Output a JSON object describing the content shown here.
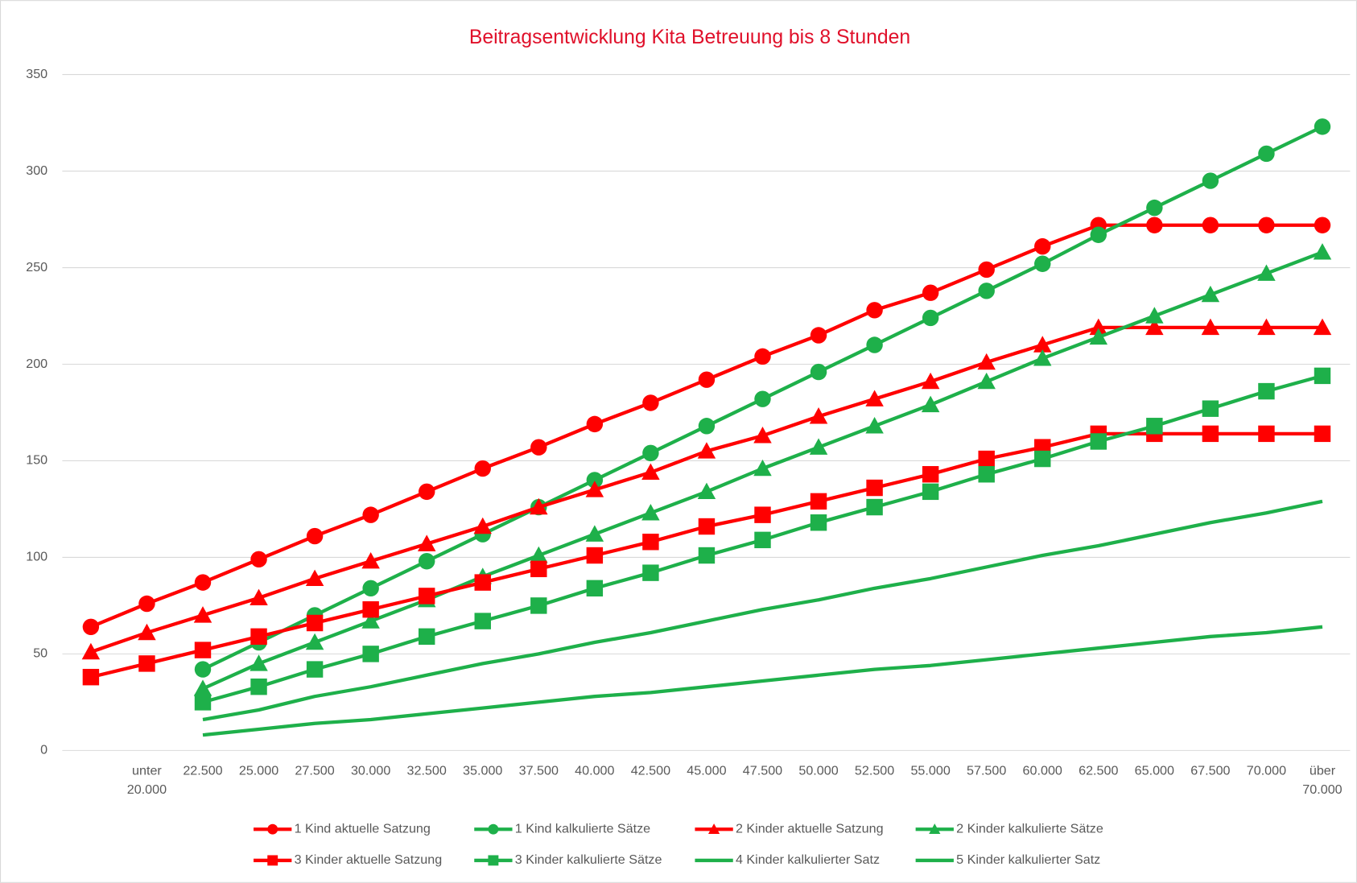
{
  "chart_data": {
    "type": "line",
    "title": "Beitragsentwicklung Kita Betreuung bis 8 Stunden",
    "categories": [
      null,
      "unter 20.000",
      "22.500",
      "25.000",
      "27.500",
      "30.000",
      "32.500",
      "35.000",
      "37.500",
      "40.000",
      "42.500",
      "45.000",
      "47.500",
      "50.000",
      "52.500",
      "55.000",
      "57.500",
      "60.000",
      "62.500",
      "65.000",
      "67.500",
      "70.000",
      "über 70.000"
    ],
    "ylim": [
      0,
      350
    ],
    "yticks": [
      0,
      50,
      100,
      150,
      200,
      250,
      300,
      350
    ],
    "grid": true,
    "legend": "bottom",
    "series": [
      {
        "name": "1 Kind aktuelle Satzung",
        "color": "#ff0000",
        "marker": "circle",
        "values": [
          64,
          76,
          87,
          99,
          111,
          122,
          134,
          146,
          157,
          169,
          180,
          192,
          204,
          215,
          228,
          237,
          249,
          261,
          272,
          272,
          272,
          272,
          272
        ]
      },
      {
        "name": "1 Kind kalkulierte Sätze",
        "color": "#1eb04a",
        "marker": "circle",
        "values": [
          null,
          null,
          42,
          56,
          70,
          84,
          98,
          112,
          126,
          140,
          154,
          168,
          182,
          196,
          210,
          224,
          238,
          252,
          267,
          281,
          295,
          309,
          323
        ]
      },
      {
        "name": "2 Kinder aktuelle Satzung",
        "color": "#ff0000",
        "marker": "triangle",
        "values": [
          51,
          61,
          70,
          79,
          89,
          98,
          107,
          116,
          126,
          135,
          144,
          155,
          163,
          173,
          182,
          191,
          201,
          210,
          219,
          219,
          219,
          219,
          219
        ]
      },
      {
        "name": "2 Kinder kalkulierte Sätze",
        "color": "#1eb04a",
        "marker": "triangle",
        "values": [
          null,
          null,
          32,
          45,
          56,
          67,
          78,
          90,
          101,
          112,
          123,
          134,
          146,
          157,
          168,
          179,
          191,
          203,
          214,
          225,
          236,
          247,
          258
        ]
      },
      {
        "name": "3 Kinder aktuelle Satzung",
        "color": "#ff0000",
        "marker": "square",
        "values": [
          38,
          45,
          52,
          59,
          66,
          73,
          80,
          87,
          94,
          101,
          108,
          116,
          122,
          129,
          136,
          143,
          151,
          157,
          164,
          164,
          164,
          164,
          164
        ]
      },
      {
        "name": "3 Kinder kalkulierte Sätze",
        "color": "#1eb04a",
        "marker": "square",
        "values": [
          null,
          null,
          25,
          33,
          42,
          50,
          59,
          67,
          75,
          84,
          92,
          101,
          109,
          118,
          126,
          134,
          143,
          151,
          160,
          168,
          177,
          186,
          194
        ]
      },
      {
        "name": "4 Kinder kalkulierter Satz",
        "color": "#1eb04a",
        "marker": "none",
        "values": [
          null,
          null,
          16,
          21,
          28,
          33,
          39,
          45,
          50,
          56,
          61,
          67,
          73,
          78,
          84,
          89,
          95,
          101,
          106,
          112,
          118,
          123,
          129
        ]
      },
      {
        "name": "5 Kinder kalkulierter Satz",
        "color": "#1eb04a",
        "marker": "none",
        "values": [
          null,
          null,
          8,
          11,
          14,
          16,
          19,
          22,
          25,
          28,
          30,
          33,
          36,
          39,
          42,
          44,
          47,
          50,
          53,
          56,
          59,
          61,
          64
        ]
      }
    ]
  }
}
